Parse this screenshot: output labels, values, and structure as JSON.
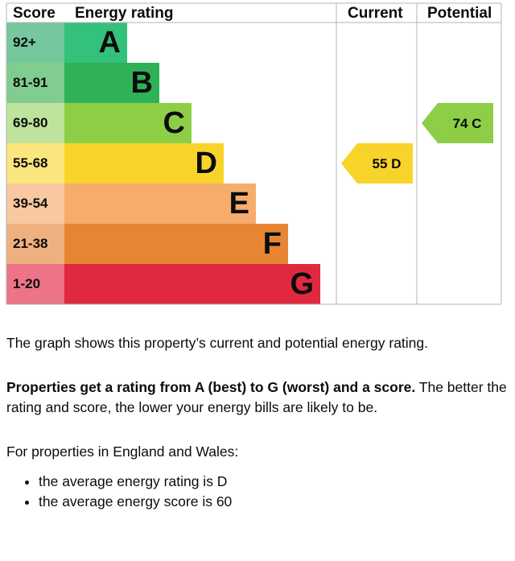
{
  "chart_data": {
    "type": "table",
    "headers": {
      "score": "Score",
      "rating": "Energy rating",
      "current": "Current",
      "potential": "Potential"
    },
    "bands": [
      {
        "letter": "A",
        "range": "92+",
        "color": "#008054",
        "band_color": "#33c17b",
        "score_color": "#75c79d"
      },
      {
        "letter": "B",
        "range": "81-91",
        "color": "#19b459",
        "band_color": "#2fb257",
        "score_color": "#81cc8f"
      },
      {
        "letter": "C",
        "range": "69-80",
        "color": "#8dce46",
        "band_color": "#8dce46",
        "score_color": "#bee39c"
      },
      {
        "letter": "D",
        "range": "55-68",
        "color": "#ffd500",
        "band_color": "#f8d42a",
        "score_color": "#fbe57d"
      },
      {
        "letter": "E",
        "range": "39-54",
        "color": "#fcaa65",
        "band_color": "#f5ac6c",
        "score_color": "#f8c8a0"
      },
      {
        "letter": "F",
        "range": "21-38",
        "color": "#ef8023",
        "band_color": "#e88532",
        "score_color": "#efb080"
      },
      {
        "letter": "G",
        "range": "1-20",
        "color": "#e9153b",
        "band_color": "#e0293f",
        "score_color": "#ec7388"
      }
    ],
    "current": {
      "score": 55,
      "letter": "D",
      "label": "55 D",
      "color": "#f8d42a"
    },
    "potential": {
      "score": 74,
      "letter": "C",
      "label": "74 C",
      "color": "#8dce46"
    }
  },
  "text": {
    "intro": "The graph shows this property’s current and potential energy rating.",
    "bold_sentence": "Properties get a rating from A (best) to G (worst) and a score.",
    "rest_sentence": " The better the rating and score, the lower your energy bills are likely to be.",
    "england_wales": "For properties in England and Wales:",
    "bullets": [
      "the average energy rating is D",
      "the average energy score is 60"
    ]
  }
}
